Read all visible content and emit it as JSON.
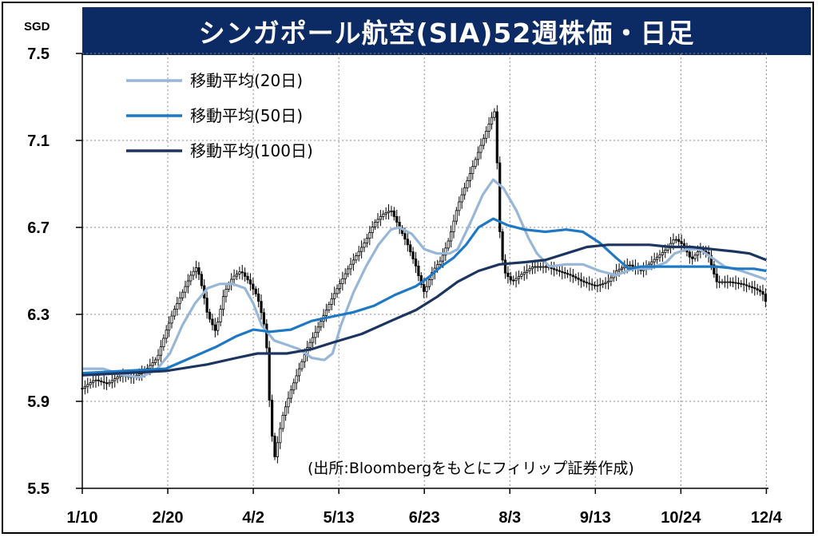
{
  "title": "シンガポール航空(SIA)52週株価・日足",
  "source_note": "(出所:Bloombergをもとにフィリップ証券作成)",
  "chart_data": {
    "type": "candlestick-line",
    "title": "シンガポール航空(SIA)52週株価・日足",
    "ylabel_unit": "SGD",
    "ylim": [
      5.5,
      7.5
    ],
    "yticks": [
      7.5,
      7.1,
      6.7,
      6.3,
      5.9,
      5.5
    ],
    "ytick_labels": [
      "7.5",
      "7.1",
      "6.7",
      "6.3",
      "5.9",
      "5.5"
    ],
    "xlim": [
      0,
      329
    ],
    "xticks": [
      0,
      41,
      82,
      123,
      164,
      205,
      246,
      287,
      328
    ],
    "xtick_labels": [
      "1/10",
      "2/20",
      "4/2",
      "5/13",
      "6/23",
      "8/3",
      "9/13",
      "10/24",
      "12/4"
    ],
    "grid": true,
    "legend_position": "top-left",
    "legend": [
      {
        "label": "移動平均(20日)",
        "color": "#98b6d8"
      },
      {
        "label": "移動平均(50日)",
        "color": "#1f78c4"
      },
      {
        "label": "移動平均(100日)",
        "color": "#1c3560"
      }
    ],
    "price": [
      [
        0,
        5.96
      ],
      [
        6,
        6.0
      ],
      [
        12,
        5.98
      ],
      [
        18,
        6.02
      ],
      [
        24,
        6.01
      ],
      [
        30,
        6.04
      ],
      [
        36,
        6.1
      ],
      [
        40,
        6.22
      ],
      [
        44,
        6.32
      ],
      [
        48,
        6.4
      ],
      [
        52,
        6.48
      ],
      [
        55,
        6.52
      ],
      [
        58,
        6.4
      ],
      [
        60,
        6.3
      ],
      [
        64,
        6.22
      ],
      [
        68,
        6.4
      ],
      [
        72,
        6.47
      ],
      [
        76,
        6.5
      ],
      [
        80,
        6.45
      ],
      [
        84,
        6.38
      ],
      [
        88,
        6.22
      ],
      [
        90,
        5.85
      ],
      [
        92,
        5.63
      ],
      [
        96,
        5.83
      ],
      [
        100,
        5.95
      ],
      [
        104,
        6.05
      ],
      [
        108,
        6.15
      ],
      [
        112,
        6.22
      ],
      [
        116,
        6.3
      ],
      [
        120,
        6.38
      ],
      [
        124,
        6.45
      ],
      [
        128,
        6.52
      ],
      [
        132,
        6.58
      ],
      [
        136,
        6.64
      ],
      [
        140,
        6.72
      ],
      [
        144,
        6.76
      ],
      [
        148,
        6.78
      ],
      [
        152,
        6.7
      ],
      [
        156,
        6.62
      ],
      [
        160,
        6.52
      ],
      [
        162,
        6.45
      ],
      [
        164,
        6.4
      ],
      [
        168,
        6.5
      ],
      [
        172,
        6.55
      ],
      [
        176,
        6.65
      ],
      [
        180,
        6.8
      ],
      [
        184,
        6.9
      ],
      [
        188,
        7.0
      ],
      [
        192,
        7.1
      ],
      [
        196,
        7.2
      ],
      [
        198,
        7.24
      ],
      [
        200,
        6.7
      ],
      [
        202,
        6.5
      ],
      [
        206,
        6.45
      ],
      [
        210,
        6.48
      ],
      [
        216,
        6.52
      ],
      [
        222,
        6.52
      ],
      [
        228,
        6.5
      ],
      [
        234,
        6.48
      ],
      [
        240,
        6.45
      ],
      [
        246,
        6.43
      ],
      [
        252,
        6.45
      ],
      [
        256,
        6.5
      ],
      [
        262,
        6.53
      ],
      [
        268,
        6.5
      ],
      [
        274,
        6.55
      ],
      [
        280,
        6.6
      ],
      [
        284,
        6.65
      ],
      [
        288,
        6.62
      ],
      [
        292,
        6.55
      ],
      [
        296,
        6.6
      ],
      [
        300,
        6.58
      ],
      [
        304,
        6.45
      ],
      [
        310,
        6.45
      ],
      [
        316,
        6.44
      ],
      [
        322,
        6.42
      ],
      [
        326,
        6.4
      ],
      [
        328,
        6.35
      ]
    ],
    "series": [
      {
        "name": "移動平均(20日)",
        "color": "#98b6d8",
        "points": [
          [
            0,
            6.05
          ],
          [
            10,
            6.05
          ],
          [
            20,
            6.02
          ],
          [
            28,
            6.01
          ],
          [
            36,
            6.05
          ],
          [
            42,
            6.12
          ],
          [
            48,
            6.25
          ],
          [
            54,
            6.35
          ],
          [
            60,
            6.42
          ],
          [
            66,
            6.44
          ],
          [
            72,
            6.44
          ],
          [
            78,
            6.42
          ],
          [
            82,
            6.35
          ],
          [
            86,
            6.25
          ],
          [
            92,
            6.18
          ],
          [
            98,
            6.16
          ],
          [
            104,
            6.14
          ],
          [
            110,
            6.1
          ],
          [
            116,
            6.09
          ],
          [
            120,
            6.12
          ],
          [
            124,
            6.25
          ],
          [
            130,
            6.4
          ],
          [
            136,
            6.52
          ],
          [
            142,
            6.62
          ],
          [
            148,
            6.69
          ],
          [
            152,
            6.7
          ],
          [
            158,
            6.67
          ],
          [
            164,
            6.6
          ],
          [
            170,
            6.58
          ],
          [
            176,
            6.58
          ],
          [
            180,
            6.6
          ],
          [
            186,
            6.72
          ],
          [
            192,
            6.85
          ],
          [
            197,
            6.92
          ],
          [
            202,
            6.88
          ],
          [
            208,
            6.78
          ],
          [
            214,
            6.65
          ],
          [
            218,
            6.58
          ],
          [
            224,
            6.52
          ],
          [
            232,
            6.53
          ],
          [
            240,
            6.53
          ],
          [
            248,
            6.5
          ],
          [
            256,
            6.48
          ],
          [
            264,
            6.51
          ],
          [
            272,
            6.51
          ],
          [
            280,
            6.54
          ],
          [
            284,
            6.58
          ],
          [
            290,
            6.6
          ],
          [
            296,
            6.6
          ],
          [
            302,
            6.56
          ],
          [
            308,
            6.52
          ],
          [
            316,
            6.5
          ],
          [
            322,
            6.48
          ],
          [
            328,
            6.46
          ]
        ]
      },
      {
        "name": "移動平均(50日)",
        "color": "#1f78c4",
        "points": [
          [
            0,
            6.03
          ],
          [
            20,
            6.04
          ],
          [
            40,
            6.05
          ],
          [
            52,
            6.1
          ],
          [
            64,
            6.15
          ],
          [
            74,
            6.2
          ],
          [
            82,
            6.23
          ],
          [
            90,
            6.22
          ],
          [
            100,
            6.23
          ],
          [
            110,
            6.27
          ],
          [
            120,
            6.29
          ],
          [
            130,
            6.31
          ],
          [
            140,
            6.34
          ],
          [
            150,
            6.39
          ],
          [
            160,
            6.43
          ],
          [
            166,
            6.47
          ],
          [
            172,
            6.52
          ],
          [
            178,
            6.56
          ],
          [
            184,
            6.62
          ],
          [
            190,
            6.7
          ],
          [
            197,
            6.74
          ],
          [
            204,
            6.71
          ],
          [
            212,
            6.69
          ],
          [
            222,
            6.68
          ],
          [
            232,
            6.69
          ],
          [
            240,
            6.68
          ],
          [
            248,
            6.63
          ],
          [
            256,
            6.56
          ],
          [
            262,
            6.51
          ],
          [
            268,
            6.52
          ],
          [
            274,
            6.52
          ],
          [
            284,
            6.52
          ],
          [
            294,
            6.52
          ],
          [
            304,
            6.52
          ],
          [
            314,
            6.51
          ],
          [
            322,
            6.51
          ],
          [
            328,
            6.5
          ]
        ]
      },
      {
        "name": "移動平均(100日)",
        "color": "#1c3560",
        "points": [
          [
            0,
            6.02
          ],
          [
            20,
            6.03
          ],
          [
            40,
            6.04
          ],
          [
            60,
            6.07
          ],
          [
            74,
            6.1
          ],
          [
            84,
            6.12
          ],
          [
            98,
            6.12
          ],
          [
            110,
            6.14
          ],
          [
            120,
            6.17
          ],
          [
            134,
            6.21
          ],
          [
            148,
            6.27
          ],
          [
            160,
            6.32
          ],
          [
            170,
            6.38
          ],
          [
            180,
            6.45
          ],
          [
            190,
            6.5
          ],
          [
            200,
            6.53
          ],
          [
            212,
            6.54
          ],
          [
            222,
            6.55
          ],
          [
            232,
            6.58
          ],
          [
            242,
            6.61
          ],
          [
            252,
            6.62
          ],
          [
            262,
            6.62
          ],
          [
            272,
            6.62
          ],
          [
            282,
            6.61
          ],
          [
            292,
            6.61
          ],
          [
            302,
            6.6
          ],
          [
            312,
            6.59
          ],
          [
            320,
            6.58
          ],
          [
            328,
            6.55
          ]
        ]
      }
    ]
  }
}
